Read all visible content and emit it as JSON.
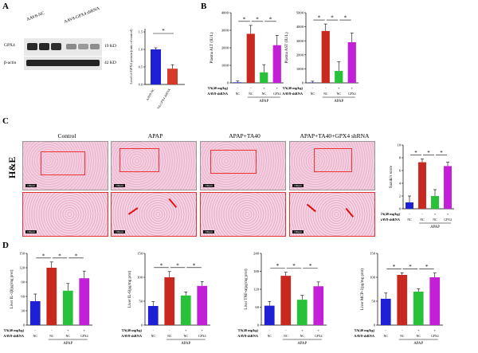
{
  "panels": {
    "A": "A",
    "B": "B",
    "C": "C",
    "D": "D"
  },
  "panelA": {
    "lanes": [
      "AAV8-NC",
      "AAV8-GPX4 shRNA"
    ],
    "bands": [
      {
        "name": "GPX4",
        "size": "19 KD"
      },
      {
        "name": "β-actin",
        "size": "42 KD"
      }
    ],
    "ylabel": "Level of GPX4 protein (ratio of control)",
    "xcats": [
      "AAV8-NC",
      "AAV8-GPX4 shRNA"
    ],
    "sig": "*",
    "colors": [
      "#1f1fd6",
      "#d83a2a"
    ]
  },
  "panelB": {
    "ylabels": [
      "Plasma ALT (IU/L)",
      "Plasma AST (IU/L)"
    ],
    "ta_label": "TA(40 mg/kg)",
    "aav_label": "AAV8-shRNA",
    "ta_values": [
      "-",
      "-",
      "+",
      "+"
    ],
    "aav_values": [
      "NC",
      "NC",
      "NC",
      "GPX4"
    ],
    "group": "APAP",
    "sig": "*"
  },
  "panelC": {
    "columns": [
      "Control",
      "APAP",
      "APAP+TA40",
      "APAP+TA40+GPX4 shRNA"
    ],
    "row_label": "H&E",
    "scale_label": "100μm",
    "ylabel": "Suzuki's score",
    "ta_label": "TA(40 mg/kg)",
    "aav_label": "AAV8-shRNA",
    "ta_values": [
      "-",
      "-",
      "+",
      "+"
    ],
    "aav_values": [
      "NC",
      "NC",
      "NC",
      "GPX4"
    ],
    "group": "APAP",
    "sig": "*"
  },
  "panelD": {
    "ylabels": [
      "Liver IL-1β(pg/mg prot)",
      "Liver IL-6(pg/mg prot)",
      "Liver TNF-α(pg/mg prot)",
      "Liver MCP-1(pg/mg prot)"
    ],
    "ta_label": "TA(40 mg/kg)",
    "aav_label": "AAV8-shRNA",
    "ta_values": [
      "-",
      "-",
      "+",
      "+"
    ],
    "aav_values": [
      "NC",
      "NC",
      "NC",
      "GPX4"
    ],
    "group": "APAP",
    "sig": "*"
  },
  "colors": {
    "bar1": "#1f1fd6",
    "bar2": "#c8281e",
    "bar3": "#27c23a",
    "bar4": "#c21fd6",
    "border": "#e33333"
  },
  "chart_data": [
    {
      "type": "bar",
      "categories": [
        "AAV8-NC",
        "AAV8-GPX4 shRNA"
      ],
      "values": [
        1.0,
        0.45
      ],
      "ylabel": "Level of GPX4 protein (ratio of control)",
      "ylim": [
        0,
        1.5
      ],
      "yticks": [
        "0.0",
        "0.5",
        "1.0",
        "1.5"
      ]
    },
    {
      "type": "bar",
      "categories": [
        "NC",
        "NC",
        "NC",
        "GPX4"
      ],
      "values": [
        30,
        2800,
        600,
        2150
      ],
      "ylabel": "Plasma ALT (IU/L)",
      "ylim": [
        0,
        4000
      ],
      "yticks": [
        "0",
        "1000",
        "2000",
        "3000",
        "4000"
      ]
    },
    {
      "type": "bar",
      "categories": [
        "NC",
        "NC",
        "NC",
        "GPX4"
      ],
      "values": [
        20,
        3700,
        850,
        2900
      ],
      "ylabel": "Plasma AST (IU/L)",
      "ylim": [
        0,
        5000
      ],
      "yticks": [
        "0",
        "1000",
        "2000",
        "3000",
        "4000",
        "5000"
      ]
    },
    {
      "type": "bar",
      "categories": [
        "NC",
        "NC",
        "NC",
        "GPX4"
      ],
      "values": [
        1.0,
        7.3,
        2.0,
        6.7
      ],
      "ylabel": "Suzuki's score",
      "ylim": [
        0,
        10
      ],
      "yticks": [
        "0",
        "2",
        "4",
        "6",
        "8",
        "10"
      ]
    },
    {
      "type": "bar",
      "categories": [
        "NC",
        "NC",
        "NC",
        "GPX4"
      ],
      "values": [
        50,
        120,
        72,
        98
      ],
      "ylabel": "Liver IL-1β(pg/mg prot)",
      "ylim": [
        0,
        150
      ],
      "yticks": [
        "0",
        "30",
        "60",
        "90",
        "120",
        "150"
      ]
    },
    {
      "type": "bar",
      "categories": [
        "NC",
        "NC",
        "NC",
        "GPX4"
      ],
      "values": [
        40,
        100,
        62,
        82
      ],
      "ylabel": "Liver IL-6(pg/mg prot)",
      "ylim": [
        0,
        150
      ],
      "yticks": [
        "0",
        "50",
        "100",
        "150"
      ]
    },
    {
      "type": "bar",
      "categories": [
        "NC",
        "NC",
        "NC",
        "GPX4"
      ],
      "values": [
        65,
        165,
        85,
        130
      ],
      "ylabel": "Liver TNF-α(pg/mg prot)",
      "ylim": [
        0,
        240
      ],
      "yticks": [
        "0",
        "60",
        "120",
        "180",
        "240"
      ]
    },
    {
      "type": "bar",
      "categories": [
        "NC",
        "NC",
        "NC",
        "GPX4"
      ],
      "values": [
        55,
        105,
        70,
        100
      ],
      "ylabel": "Liver MCP-1(pg/mg prot)",
      "ylim": [
        0,
        150
      ],
      "yticks": [
        "0",
        "50",
        "100",
        "150"
      ]
    }
  ]
}
